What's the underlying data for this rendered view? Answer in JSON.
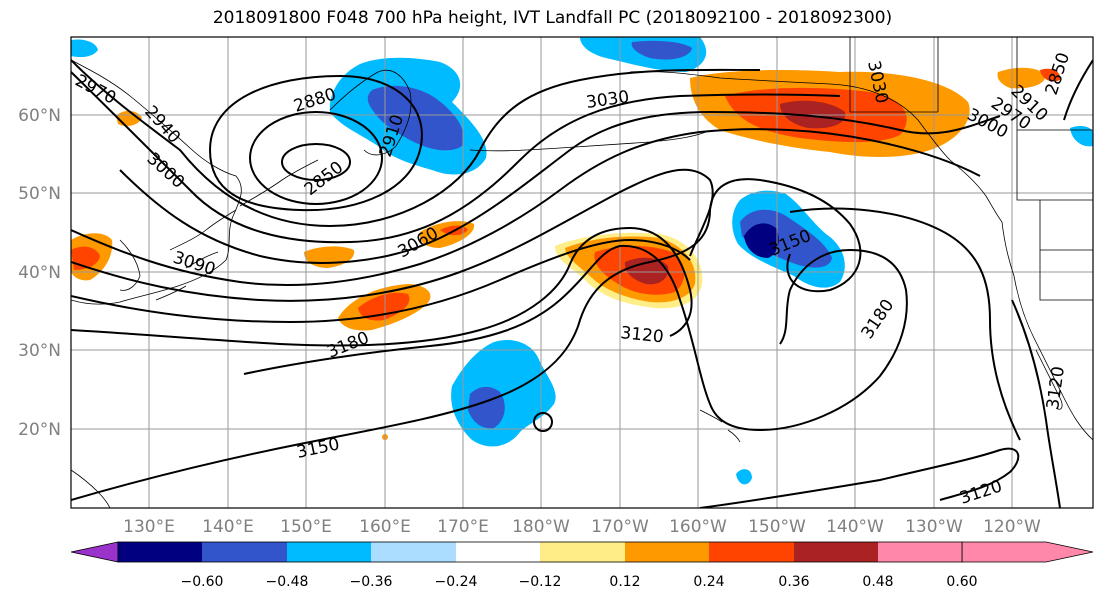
{
  "title": "2018091800 F048 700 hPa height, IVT Landfall PC (2018092100 - 2018092300)",
  "map": {
    "lat_ticks": [
      "60°N",
      "50°N",
      "40°N",
      "30°N",
      "20°N"
    ],
    "lon_ticks": [
      "130°E",
      "140°E",
      "150°E",
      "160°E",
      "170°E",
      "180°W",
      "170°W",
      "160°W",
      "150°W",
      "140°W",
      "130°W",
      "120°W"
    ],
    "contour_labels": [
      "2970",
      "2940",
      "3000",
      "2880",
      "2850",
      "2910",
      "3060",
      "3090",
      "3030",
      "3030",
      "3000",
      "2970",
      "2850",
      "2910",
      "3150",
      "3180",
      "3120",
      "3180",
      "3150",
      "3120",
      "3120"
    ],
    "frame_color": "#000000",
    "grid_color": "#999999"
  },
  "colorbar": {
    "colors": [
      "#9933cc",
      "#000080",
      "#3355cc",
      "#00bbff",
      "#aaddff",
      "#ffffff",
      "#ffee88",
      "#ff9900",
      "#ff4400",
      "#aa2222",
      "#ff88aa"
    ],
    "tick_labels": [
      "−0.60",
      "−0.48",
      "−0.36",
      "−0.24",
      "−0.12",
      "0.12",
      "0.24",
      "0.36",
      "0.48",
      "0.60"
    ]
  }
}
